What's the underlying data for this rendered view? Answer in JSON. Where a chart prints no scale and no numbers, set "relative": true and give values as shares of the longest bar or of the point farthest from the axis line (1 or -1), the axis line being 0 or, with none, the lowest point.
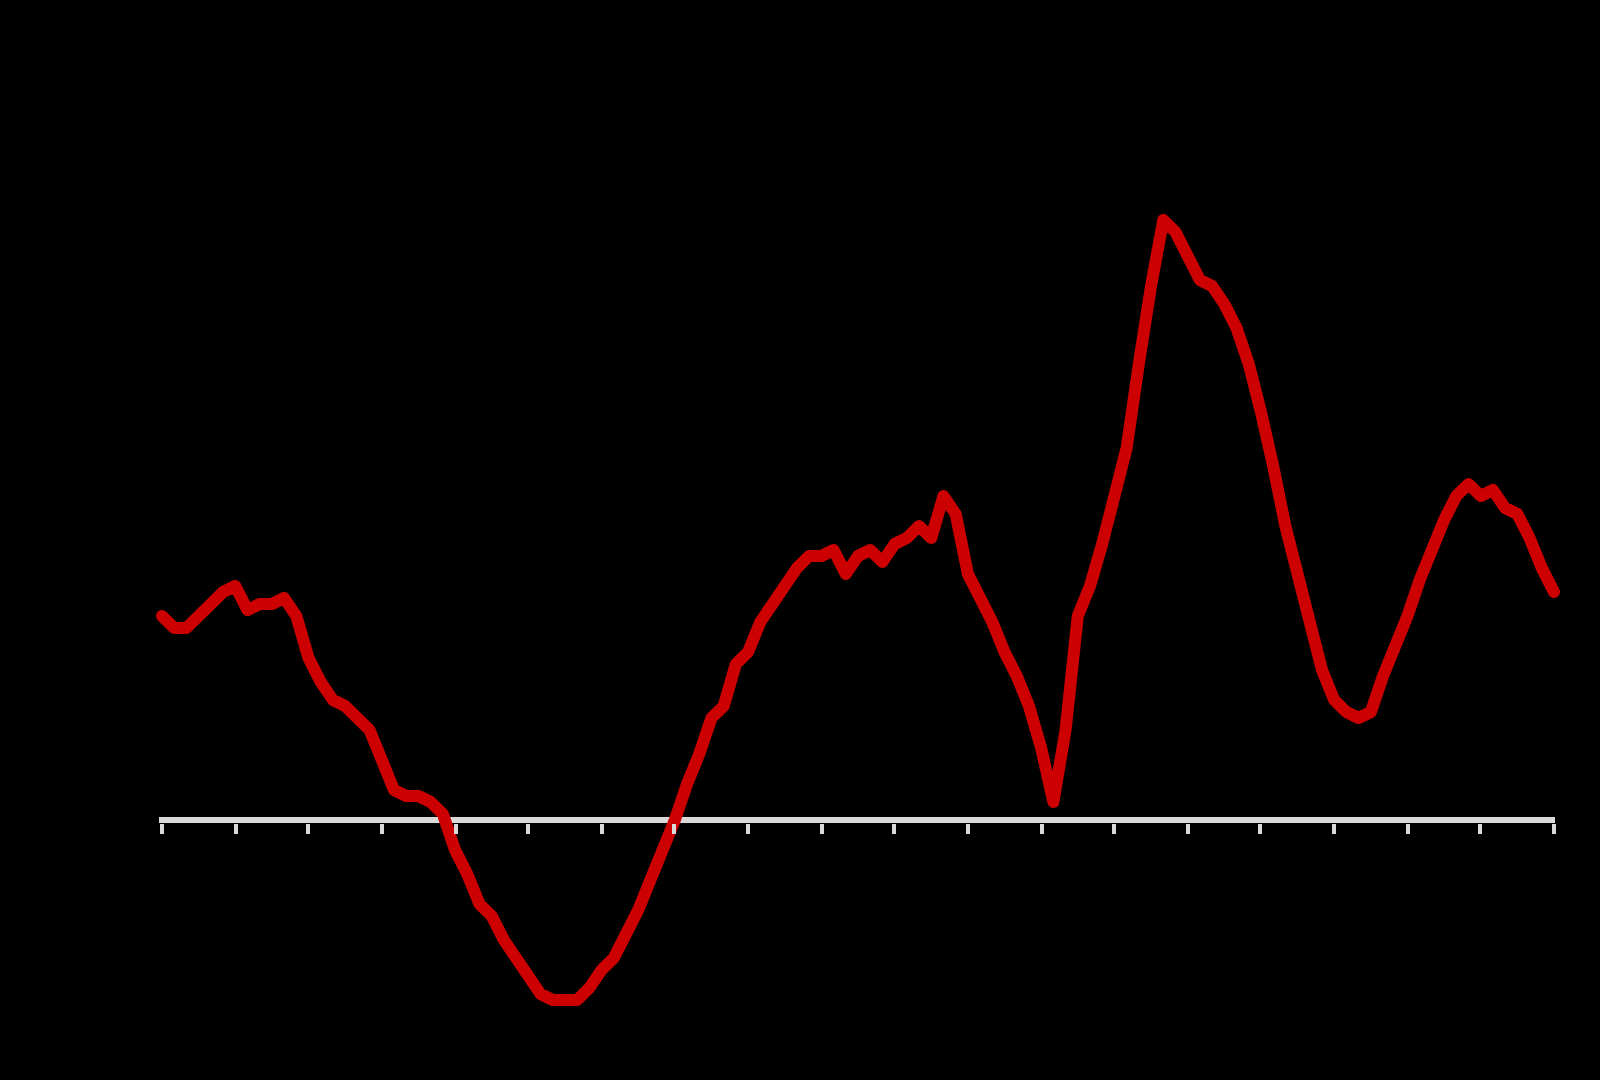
{
  "chart_data": {
    "type": "line",
    "relative": true,
    "line_style": "solid",
    "color": "#cc0000",
    "categories": [
      null,
      null,
      null,
      null,
      null,
      null,
      null,
      null,
      null,
      null,
      null,
      null,
      null,
      null,
      null,
      null,
      null,
      null,
      null,
      null,
      null,
      null,
      null,
      null,
      null,
      null,
      null,
      null,
      null,
      null,
      null,
      null,
      null,
      null,
      null,
      null,
      null,
      null,
      null,
      null,
      null,
      null,
      null,
      null,
      null,
      null,
      null,
      null,
      null,
      null,
      null,
      null,
      null,
      null,
      null,
      null,
      null,
      null,
      null,
      null,
      null,
      null,
      null,
      null,
      null,
      null,
      null,
      null,
      null,
      null,
      null,
      null,
      null,
      null,
      null,
      null,
      null,
      null,
      null,
      null,
      null,
      null,
      null,
      null,
      null,
      null,
      null,
      null,
      null,
      null,
      null,
      null,
      null,
      null,
      null,
      null,
      null,
      null,
      null,
      null,
      null,
      null,
      null,
      null,
      null,
      null,
      null,
      null,
      null,
      null,
      null,
      null,
      null,
      null,
      null
    ],
    "values": [
      0.34,
      0.32,
      0.32,
      0.34,
      0.36,
      0.38,
      0.39,
      0.35,
      0.36,
      0.36,
      0.37,
      0.34,
      0.27,
      0.23,
      0.2,
      0.19,
      0.17,
      0.15,
      0.1,
      0.05,
      0.04,
      0.04,
      0.03,
      0.01,
      -0.05,
      -0.09,
      -0.14,
      -0.16,
      -0.2,
      -0.23,
      -0.26,
      -0.29,
      -0.3,
      -0.3,
      -0.3,
      -0.28,
      -0.25,
      -0.23,
      -0.19,
      -0.15,
      -0.1,
      -0.05,
      0.0,
      0.06,
      0.11,
      0.17,
      0.19,
      0.26,
      0.28,
      0.33,
      0.36,
      0.39,
      0.42,
      0.44,
      0.44,
      0.45,
      0.41,
      0.44,
      0.45,
      0.43,
      0.46,
      0.47,
      0.49,
      0.47,
      0.54,
      0.51,
      0.41,
      0.37,
      0.33,
      0.28,
      0.24,
      0.19,
      0.12,
      0.03,
      0.15,
      0.34,
      0.39,
      0.46,
      0.54,
      0.62,
      0.76,
      0.89,
      1.0,
      0.98,
      0.94,
      0.9,
      0.89,
      0.86,
      0.82,
      0.76,
      0.68,
      0.59,
      0.49,
      0.41,
      0.33,
      0.25,
      0.2,
      0.18,
      0.17,
      0.18,
      0.24,
      0.29,
      0.34,
      0.4,
      0.45,
      0.5,
      0.54,
      0.56,
      0.54,
      0.55,
      0.52,
      0.51,
      0.47,
      0.42,
      0.38
    ]
  }
}
